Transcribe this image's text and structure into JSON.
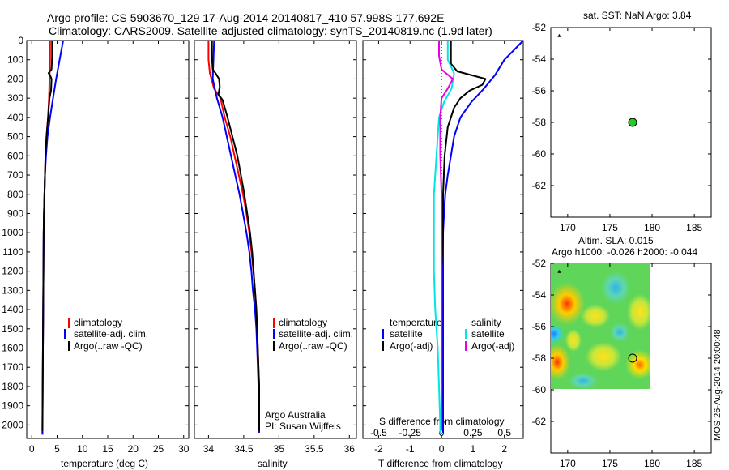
{
  "header": {
    "line1": "Argo profile: CS 5903670_129 17-Aug-2014 20140817_410 57.998S 177.692E",
    "line2": "Climatology: CARS2009. Satellite-adjusted climatology: synTS_20140819.nc (1.9d later)"
  },
  "colors": {
    "climatology": "#ff0000",
    "satellite": "#0000ff",
    "argo": "#000000",
    "salinity_satellite": "#00e5e5",
    "salinity_argo": "#e600e6"
  },
  "chart_data": [
    {
      "id": "temperature",
      "type": "line",
      "xlabel": "temperature (deg C)",
      "ylabel": "",
      "xlim": [
        -1,
        31
      ],
      "ylim": [
        2070,
        0
      ],
      "xticks": [
        0,
        5,
        10,
        15,
        20,
        25,
        30
      ],
      "yticks": [
        0,
        100,
        200,
        300,
        400,
        500,
        600,
        700,
        800,
        900,
        1000,
        1100,
        1200,
        1300,
        1400,
        1500,
        1600,
        1700,
        1800,
        1900,
        2000
      ],
      "legend": [
        "climatology",
        "satellite-adj. clim.",
        "Argo(..raw -QC)"
      ],
      "series": [
        {
          "name": "climatology",
          "color": "#ff0000",
          "points": [
            [
              3.6,
              0
            ],
            [
              3.6,
              100
            ],
            [
              3.5,
              200
            ],
            [
              3.4,
              300
            ],
            [
              3.2,
              400
            ],
            [
              2.9,
              500
            ],
            [
              2.7,
              600
            ],
            [
              2.6,
              700
            ],
            [
              2.5,
              800
            ],
            [
              2.4,
              900
            ],
            [
              2.35,
              1000
            ],
            [
              2.3,
              1200
            ],
            [
              2.25,
              1400
            ],
            [
              2.2,
              1600
            ],
            [
              2.15,
              1800
            ],
            [
              2.1,
              2000
            ],
            [
              2.1,
              2050
            ]
          ]
        },
        {
          "name": "satellite-adj. clim.",
          "color": "#0000ff",
          "points": [
            [
              6.2,
              0
            ],
            [
              5.5,
              100
            ],
            [
              4.8,
              200
            ],
            [
              4.2,
              300
            ],
            [
              3.6,
              400
            ],
            [
              3.1,
              500
            ],
            [
              2.8,
              600
            ],
            [
              2.6,
              700
            ],
            [
              2.5,
              800
            ],
            [
              2.4,
              900
            ],
            [
              2.35,
              1000
            ],
            [
              2.3,
              1200
            ],
            [
              2.25,
              1400
            ],
            [
              2.2,
              1600
            ],
            [
              2.15,
              1800
            ],
            [
              2.1,
              2000
            ],
            [
              2.1,
              2050
            ]
          ]
        },
        {
          "name": "Argo(..raw -QC)",
          "color": "#000000",
          "points": [
            [
              4.0,
              0
            ],
            [
              4.0,
              90
            ],
            [
              3.9,
              150
            ],
            [
              3.3,
              170
            ],
            [
              3.6,
              180
            ],
            [
              3.9,
              200
            ],
            [
              3.8,
              260
            ],
            [
              3.5,
              300
            ],
            [
              3.2,
              400
            ],
            [
              2.9,
              500
            ],
            [
              2.7,
              600
            ],
            [
              2.6,
              700
            ],
            [
              2.5,
              800
            ],
            [
              2.4,
              900
            ],
            [
              2.35,
              1000
            ],
            [
              2.3,
              1200
            ],
            [
              2.25,
              1400
            ],
            [
              2.2,
              1600
            ],
            [
              2.15,
              1800
            ],
            [
              2.12,
              2000
            ],
            [
              2.1,
              2030
            ]
          ]
        }
      ]
    },
    {
      "id": "salinity",
      "type": "line",
      "xlabel": "salinity",
      "xlim": [
        33.8,
        36.1
      ],
      "ylim": [
        2070,
        0
      ],
      "xticks": [
        34,
        34.5,
        35,
        35.5,
        36
      ],
      "legend": [
        "climatology",
        "satellite-adj. clim.",
        "Argo(..raw -QC)"
      ],
      "annotation": [
        "Argo Australia",
        "PI: Susan Wijffels"
      ],
      "series": [
        {
          "name": "climatology",
          "color": "#ff0000",
          "points": [
            [
              34.0,
              0
            ],
            [
              34.0,
              100
            ],
            [
              34.02,
              170
            ],
            [
              34.08,
              250
            ],
            [
              34.17,
              300
            ],
            [
              34.23,
              400
            ],
            [
              34.31,
              500
            ],
            [
              34.37,
              600
            ],
            [
              34.43,
              700
            ],
            [
              34.49,
              800
            ],
            [
              34.54,
              900
            ],
            [
              34.58,
              1000
            ],
            [
              34.61,
              1100
            ],
            [
              34.64,
              1200
            ],
            [
              34.66,
              1300
            ],
            [
              34.68,
              1400
            ],
            [
              34.69,
              1500
            ],
            [
              34.7,
              1600
            ],
            [
              34.71,
              1700
            ],
            [
              34.72,
              1800
            ],
            [
              34.72,
              2000
            ],
            [
              34.72,
              2040
            ]
          ]
        },
        {
          "name": "satellite-adj. clim.",
          "color": "#0000ff",
          "points": [
            [
              34.08,
              0
            ],
            [
              34.07,
              100
            ],
            [
              34.06,
              200
            ],
            [
              34.12,
              300
            ],
            [
              34.2,
              400
            ],
            [
              34.26,
              500
            ],
            [
              34.32,
              600
            ],
            [
              34.38,
              700
            ],
            [
              34.44,
              800
            ],
            [
              34.49,
              900
            ],
            [
              34.54,
              1000
            ],
            [
              34.58,
              1100
            ],
            [
              34.61,
              1200
            ],
            [
              34.63,
              1300
            ],
            [
              34.66,
              1400
            ],
            [
              34.68,
              1500
            ],
            [
              34.69,
              1600
            ],
            [
              34.7,
              1700
            ],
            [
              34.71,
              1800
            ],
            [
              34.72,
              2000
            ],
            [
              34.72,
              2040
            ]
          ]
        },
        {
          "name": "Argo(..raw -QC)",
          "color": "#000000",
          "points": [
            [
              34.05,
              0
            ],
            [
              34.05,
              90
            ],
            [
              34.06,
              150
            ],
            [
              34.1,
              170
            ],
            [
              34.15,
              200
            ],
            [
              34.16,
              240
            ],
            [
              34.14,
              280
            ],
            [
              34.2,
              310
            ],
            [
              34.27,
              400
            ],
            [
              34.34,
              500
            ],
            [
              34.41,
              600
            ],
            [
              34.46,
              700
            ],
            [
              34.51,
              800
            ],
            [
              34.55,
              900
            ],
            [
              34.59,
              1000
            ],
            [
              34.62,
              1100
            ],
            [
              34.64,
              1200
            ],
            [
              34.66,
              1300
            ],
            [
              34.68,
              1400
            ],
            [
              34.69,
              1500
            ],
            [
              34.7,
              1600
            ],
            [
              34.71,
              1700
            ],
            [
              34.72,
              1800
            ],
            [
              34.72,
              2000
            ],
            [
              34.72,
              2030
            ]
          ]
        }
      ]
    },
    {
      "id": "differences",
      "type": "line",
      "xlabel": "T difference from climatology",
      "top_axis_label": "S difference from climatology",
      "xlim": [
        -2.5,
        2.6
      ],
      "ylim": [
        2070,
        0
      ],
      "xticks": [
        -2,
        -1,
        0,
        1,
        2
      ],
      "salinity_ticks": [
        -0.5,
        -0.25,
        0,
        0.25,
        0.5
      ],
      "legend_left_title": "temperature",
      "legend_right_title": "salinity",
      "legend": [
        "satellite",
        "Argo(-adj)",
        "satellite",
        "Argo(-adj)"
      ],
      "series": [
        {
          "name": "temperature satellite",
          "color": "#0000ff",
          "points": [
            [
              2.6,
              0
            ],
            [
              2.3,
              50
            ],
            [
              2.0,
              100
            ],
            [
              1.7,
              180
            ],
            [
              1.35,
              250
            ],
            [
              0.95,
              320
            ],
            [
              0.6,
              400
            ],
            [
              0.4,
              500
            ],
            [
              0.3,
              600
            ],
            [
              0.2,
              700
            ],
            [
              0.12,
              800
            ],
            [
              0.08,
              900
            ],
            [
              0.05,
              1000
            ],
            [
              0.05,
              1200
            ],
            [
              0.05,
              1400
            ],
            [
              0.05,
              1600
            ],
            [
              0.05,
              1800
            ],
            [
              0.05,
              2000
            ],
            [
              0.05,
              2040
            ]
          ]
        },
        {
          "name": "temperature Argo(-adj)",
          "color": "#000000",
          "points": [
            [
              0.3,
              0
            ],
            [
              0.3,
              120
            ],
            [
              0.5,
              160
            ],
            [
              1.4,
              200
            ],
            [
              1.3,
              230
            ],
            [
              0.9,
              260
            ],
            [
              0.6,
              300
            ],
            [
              0.4,
              350
            ],
            [
              0.2,
              450
            ],
            [
              0.1,
              600
            ],
            [
              0.05,
              800
            ],
            [
              0.05,
              1000
            ],
            [
              0.0,
              1200
            ],
            [
              0.0,
              1500
            ],
            [
              0.0,
              1800
            ],
            [
              0.0,
              2030
            ]
          ]
        },
        {
          "name": "salinity satellite",
          "color": "#00e5e5",
          "points": [
            [
              0.05,
              0
            ],
            [
              0.05,
              100
            ],
            [
              0.1,
              170
            ],
            [
              0.08,
              250
            ],
            [
              0.02,
              320
            ],
            [
              -0.02,
              400
            ],
            [
              -0.03,
              500
            ],
            [
              -0.04,
              600
            ],
            [
              -0.05,
              700
            ],
            [
              -0.06,
              800
            ],
            [
              -0.06,
              1000
            ],
            [
              -0.06,
              1200
            ],
            [
              -0.05,
              1400
            ],
            [
              -0.03,
              1600
            ],
            [
              -0.02,
              1800
            ],
            [
              -0.01,
              2000
            ],
            [
              -0.01,
              2040
            ]
          ]
        },
        {
          "name": "salinity Argo(-adj)",
          "color": "#e600e6",
          "points": [
            [
              -0.02,
              0
            ],
            [
              -0.02,
              80
            ],
            [
              0.0,
              150
            ],
            [
              0.09,
              200
            ],
            [
              0.05,
              250
            ],
            [
              0.0,
              300
            ],
            [
              -0.01,
              400
            ],
            [
              -0.01,
              600
            ],
            [
              0.0,
              800
            ],
            [
              0.0,
              1000
            ],
            [
              0.0,
              1200
            ],
            [
              0.0,
              1400
            ],
            [
              0.0,
              1600
            ],
            [
              0.0,
              1800
            ],
            [
              0.0,
              2000
            ],
            [
              0.0,
              2030
            ]
          ]
        }
      ]
    },
    {
      "id": "sst_map",
      "type": "scatter",
      "title": "sat. SST: NaN Argo: 3.84",
      "xlim": [
        168,
        187
      ],
      "ylim": [
        -64,
        -52
      ],
      "xticks": [
        170,
        175,
        180,
        185
      ],
      "yticks": [
        -52,
        -54,
        -56,
        -58,
        -60,
        -62
      ],
      "point": [
        177.692,
        -57.998
      ]
    },
    {
      "id": "sla_map",
      "type": "heatmap",
      "title": "Altim. SLA: 0.015",
      "subtitle": "Argo h1000: -0.026 h2000: -0.044",
      "xlim": [
        168,
        187
      ],
      "ylim": [
        -64,
        -52
      ],
      "xticks": [
        170,
        175,
        180,
        185
      ],
      "yticks": [
        -52,
        -54,
        -56,
        -58,
        -60,
        -62
      ],
      "point": [
        177.692,
        -57.998
      ],
      "side_label": "IMOS 26-Aug-2014 20:00:48"
    }
  ]
}
